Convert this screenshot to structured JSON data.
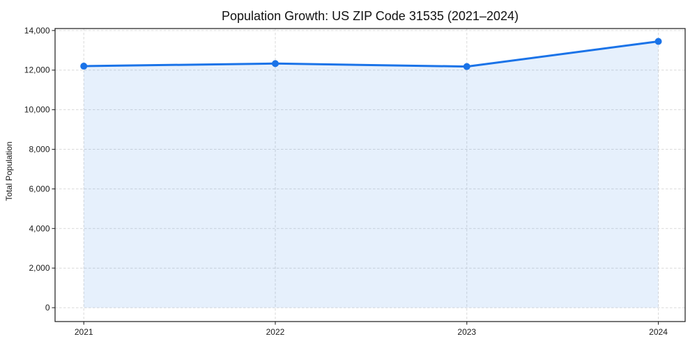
{
  "figure": {
    "title": "Population Growth: US ZIP Code 31535 (2021–2024)",
    "y_axis_label": "Total Population"
  },
  "chart_data": {
    "type": "area",
    "title": "Population Growth: US ZIP Code 31535 (2021–2024)",
    "xlabel": "",
    "ylabel": "Total Population",
    "x": [
      2021,
      2022,
      2023,
      2024
    ],
    "x_tick_labels": [
      "2021",
      "2022",
      "2023",
      "2024"
    ],
    "series": [
      {
        "name": "Total Population",
        "values": [
          12200,
          12330,
          12180,
          13450
        ]
      }
    ],
    "yticks": [
      0,
      2000,
      4000,
      6000,
      8000,
      10000,
      12000,
      14000
    ],
    "y_tick_labels": [
      "0",
      "2,000",
      "4,000",
      "6,000",
      "8,000",
      "10,000",
      "12,000",
      "14,000"
    ],
    "ylim": [
      -700,
      14100
    ],
    "xlim": [
      2020.85,
      2024.14
    ],
    "grid": true,
    "grid_style": "dashed",
    "legend_position": "none",
    "marker": "circle",
    "colors": {
      "line": "#1a73e8",
      "marker": "#1a73e8",
      "fill": "rgba(26,115,232,0.11)",
      "grid": "#d9d9d9",
      "spine": "#1a1a1a",
      "tick": "#262626",
      "background": "#ffffff"
    }
  }
}
